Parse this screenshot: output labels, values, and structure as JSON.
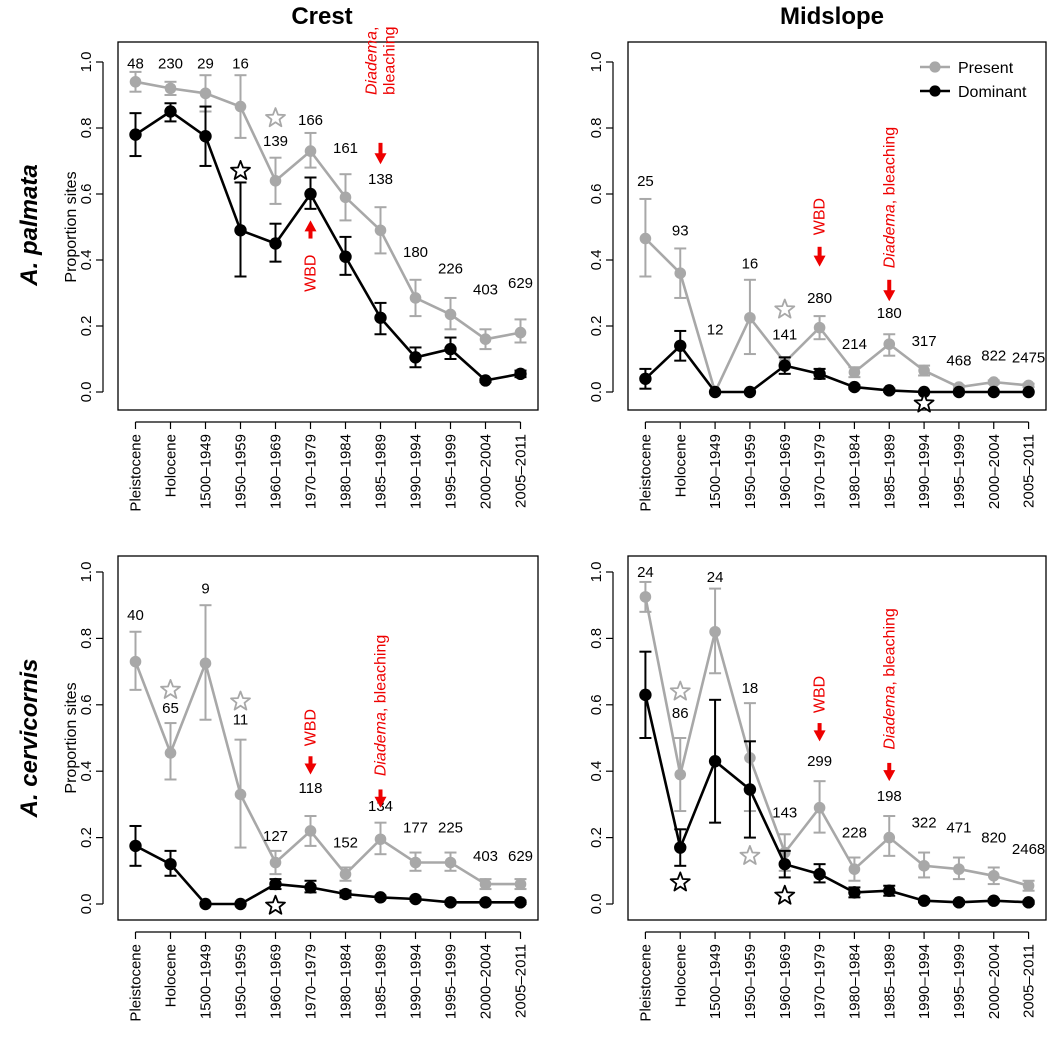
{
  "figure": {
    "column_titles": [
      "Crest",
      "Midslope"
    ],
    "row_titles": [
      "A. palmata",
      "A. cervicornis"
    ],
    "ylabel": "Proportion sites",
    "colors": {
      "present": "#a8a8a8",
      "dominant": "#000000",
      "event": "#ee0000"
    },
    "legend": {
      "present": "Present",
      "dominant": "Dominant",
      "position": "top-right of upper Midslope panel"
    }
  },
  "chart_data": [
    {
      "type": "line",
      "panel": "A. palmata / Crest",
      "categories": [
        "Pleistocene",
        "Holocene",
        "1500–1949",
        "1950–1959",
        "1960–1969",
        "1970–1979",
        "1980–1984",
        "1985–1989",
        "1990–1994",
        "1995–1999",
        "2000–2004",
        "2005–2011"
      ],
      "ylim": [
        0,
        1
      ],
      "yticks": [
        "0.0",
        "0.2",
        "0.4",
        "0.6",
        "0.8",
        "1.0"
      ],
      "grid": false,
      "series": [
        {
          "name": "Present",
          "values": [
            0.94,
            0.92,
            0.905,
            0.865,
            0.64,
            0.73,
            0.59,
            0.49,
            0.285,
            0.235,
            0.16,
            0.18
          ],
          "err_low": [
            0.91,
            0.9,
            0.85,
            0.77,
            0.57,
            0.68,
            0.52,
            0.42,
            0.23,
            0.19,
            0.13,
            0.15
          ],
          "err_high": [
            0.97,
            0.94,
            0.96,
            0.96,
            0.71,
            0.785,
            0.66,
            0.56,
            0.34,
            0.285,
            0.19,
            0.22
          ]
        },
        {
          "name": "Dominant",
          "values": [
            0.78,
            0.85,
            0.775,
            0.49,
            0.45,
            0.6,
            0.41,
            0.225,
            0.105,
            0.13,
            0.035,
            0.055
          ],
          "err_low": [
            0.715,
            0.82,
            0.685,
            0.35,
            0.395,
            0.555,
            0.355,
            0.175,
            0.075,
            0.1,
            0.03,
            0.045
          ],
          "err_high": [
            0.845,
            0.875,
            0.865,
            0.635,
            0.51,
            0.65,
            0.47,
            0.27,
            0.135,
            0.165,
            0.04,
            0.065
          ]
        }
      ],
      "sample_sizes": [
        "48",
        "230",
        "29",
        "16",
        "139",
        "166",
        "161",
        "138",
        "180",
        "226",
        "403",
        "629"
      ],
      "n_label_y": [
        0.995,
        0.995,
        0.995,
        0.995,
        0.76,
        0.825,
        0.74,
        0.645,
        0.425,
        0.375,
        0.31,
        0.33
      ],
      "stars": [
        {
          "category": "1950–1959",
          "y": 0.67,
          "series": "Dominant"
        },
        {
          "category": "1960–1969",
          "y": 0.83,
          "series": "Present"
        }
      ],
      "events": [
        {
          "label": "WBD",
          "category": "1970–1979",
          "direction": "up",
          "arrow_y": [
            0.465,
            0.52
          ],
          "text_y": 0.36
        },
        {
          "label_italic": "Diadema",
          "label_rest": ",\nbleaching",
          "category": "1985–1989",
          "direction": "down",
          "arrow_y": [
            0.755,
            0.69
          ],
          "text_y": 0.9
        }
      ]
    },
    {
      "type": "line",
      "panel": "A. palmata / Midslope",
      "categories": [
        "Pleistocene",
        "Holocene",
        "1500–1949",
        "1950–1959",
        "1960–1969",
        "1970–1979",
        "1980–1984",
        "1985–1989",
        "1990–1994",
        "1995–1999",
        "2000–2004",
        "2005–2011"
      ],
      "ylim": [
        0,
        1
      ],
      "yticks": [
        "0.0",
        "0.2",
        "0.4",
        "0.6",
        "0.8",
        "1.0"
      ],
      "grid": false,
      "series": [
        {
          "name": "Present",
          "values": [
            0.465,
            0.36,
            0.0,
            0.225,
            0.09,
            0.195,
            0.06,
            0.145,
            0.065,
            0.015,
            0.03,
            0.02
          ],
          "err_low": [
            0.35,
            0.285,
            0.0,
            0.115,
            0.075,
            0.16,
            0.045,
            0.11,
            0.05,
            0.01,
            0.025,
            0.015
          ],
          "err_high": [
            0.585,
            0.435,
            0.0,
            0.34,
            0.105,
            0.23,
            0.075,
            0.175,
            0.08,
            0.02,
            0.035,
            0.025
          ]
        },
        {
          "name": "Dominant",
          "values": [
            0.04,
            0.14,
            0.0,
            0.0,
            0.08,
            0.055,
            0.015,
            0.005,
            0.0,
            0.0,
            0.0,
            0.0
          ],
          "err_low": [
            0.01,
            0.095,
            0.0,
            0.0,
            0.055,
            0.04,
            0.01,
            0.0,
            0.0,
            0.0,
            0.0,
            0.0
          ],
          "err_high": [
            0.07,
            0.185,
            0.0,
            0.0,
            0.105,
            0.07,
            0.02,
            0.01,
            0.0,
            0.0,
            0.0,
            0.0
          ]
        }
      ],
      "sample_sizes": [
        "25",
        "93",
        "12",
        "16",
        "141",
        "280",
        "214",
        "180",
        "317",
        "468",
        "822",
        "2475"
      ],
      "n_label_y": [
        0.64,
        0.49,
        0.19,
        0.39,
        0.175,
        0.285,
        0.145,
        0.24,
        0.155,
        0.095,
        0.11,
        0.105
      ],
      "stars": [
        {
          "category": "1960–1969",
          "y": 0.25,
          "series": "Present"
        },
        {
          "category": "1990–1994",
          "y": -0.035,
          "series": "Dominant"
        }
      ],
      "events": [
        {
          "label": "WBD",
          "category": "1970–1979",
          "direction": "down",
          "arrow_y": [
            0.44,
            0.38
          ],
          "text_y": 0.475
        },
        {
          "label_italic": "Diadema",
          "label_rest": ", bleaching",
          "category": "1985–1989",
          "direction": "down",
          "arrow_y": [
            0.34,
            0.275
          ],
          "text_y": 0.375
        }
      ]
    },
    {
      "type": "line",
      "panel": "A. cervicornis / Crest",
      "categories": [
        "Pleistocene",
        "Holocene",
        "1500–1949",
        "1950–1959",
        "1960–1969",
        "1970–1979",
        "1980–1984",
        "1985–1989",
        "1990–1994",
        "1995–1999",
        "2000–2004",
        "2005–2011"
      ],
      "ylim": [
        0,
        1
      ],
      "yticks": [
        "0.0",
        "0.2",
        "0.4",
        "0.6",
        "0.8",
        "1.0"
      ],
      "grid": false,
      "series": [
        {
          "name": "Present",
          "values": [
            0.73,
            0.455,
            0.725,
            0.33,
            0.125,
            0.22,
            0.09,
            0.195,
            0.125,
            0.125,
            0.06,
            0.06
          ],
          "err_low": [
            0.645,
            0.375,
            0.555,
            0.17,
            0.09,
            0.175,
            0.07,
            0.15,
            0.1,
            0.1,
            0.045,
            0.045
          ],
          "err_high": [
            0.82,
            0.545,
            0.9,
            0.495,
            0.16,
            0.265,
            0.11,
            0.245,
            0.155,
            0.155,
            0.075,
            0.075
          ]
        },
        {
          "name": "Dominant",
          "values": [
            0.175,
            0.12,
            0.0,
            0.0,
            0.06,
            0.05,
            0.03,
            0.02,
            0.015,
            0.005,
            0.005,
            0.005
          ],
          "err_low": [
            0.115,
            0.085,
            0.0,
            0.0,
            0.045,
            0.035,
            0.02,
            0.015,
            0.01,
            0.0,
            0.0,
            0.0
          ],
          "err_high": [
            0.235,
            0.16,
            0.0,
            0.0,
            0.075,
            0.07,
            0.04,
            0.025,
            0.02,
            0.01,
            0.01,
            0.01
          ]
        }
      ],
      "sample_sizes": [
        "40",
        "65",
        "9",
        "11",
        "127",
        "118",
        "152",
        "134",
        "177",
        "225",
        "403",
        "629"
      ],
      "n_label_y": [
        0.87,
        0.59,
        0.95,
        0.555,
        0.205,
        0.35,
        0.185,
        0.295,
        0.23,
        0.23,
        0.145,
        0.145
      ],
      "stars": [
        {
          "category": "Holocene",
          "y": 0.645,
          "series": "Present"
        },
        {
          "category": "1950–1959",
          "y": 0.61,
          "series": "Present"
        },
        {
          "category": "1960–1969",
          "y": -0.005,
          "series": "Dominant"
        }
      ],
      "events": [
        {
          "label": "WBD",
          "category": "1970–1979",
          "direction": "down",
          "arrow_y": [
            0.445,
            0.39
          ],
          "text_y": 0.475
        },
        {
          "label_italic": "Diadema",
          "label_rest": ", bleaching",
          "category": "1985–1989",
          "direction": "down",
          "arrow_y": [
            0.345,
            0.29
          ],
          "text_y": 0.385
        }
      ]
    },
    {
      "type": "line",
      "panel": "A. cervicornis / Midslope",
      "categories": [
        "Pleistocene",
        "Holocene",
        "1500–1949",
        "1950–1959",
        "1960–1969",
        "1970–1979",
        "1980–1984",
        "1985–1989",
        "1990–1994",
        "1995–1999",
        "2000–2004",
        "2005–2011"
      ],
      "ylim": [
        0,
        1
      ],
      "yticks": [
        "0.0",
        "0.2",
        "0.4",
        "0.6",
        "0.8",
        "1.0"
      ],
      "grid": false,
      "series": [
        {
          "name": "Present",
          "values": [
            0.925,
            0.39,
            0.82,
            0.44,
            0.155,
            0.29,
            0.105,
            0.2,
            0.115,
            0.105,
            0.085,
            0.055
          ],
          "err_low": [
            0.88,
            0.28,
            0.695,
            0.28,
            0.1,
            0.215,
            0.07,
            0.145,
            0.08,
            0.075,
            0.06,
            0.04
          ],
          "err_high": [
            0.97,
            0.5,
            0.95,
            0.605,
            0.21,
            0.37,
            0.14,
            0.265,
            0.155,
            0.14,
            0.11,
            0.07
          ]
        },
        {
          "name": "Dominant",
          "values": [
            0.63,
            0.17,
            0.43,
            0.345,
            0.12,
            0.09,
            0.035,
            0.04,
            0.01,
            0.005,
            0.01,
            0.005
          ],
          "err_low": [
            0.5,
            0.115,
            0.245,
            0.2,
            0.08,
            0.065,
            0.02,
            0.025,
            0.005,
            0.0,
            0.005,
            0.0
          ],
          "err_high": [
            0.76,
            0.225,
            0.615,
            0.49,
            0.16,
            0.12,
            0.05,
            0.055,
            0.015,
            0.01,
            0.015,
            0.01
          ]
        }
      ],
      "sample_sizes": [
        "24",
        "86",
        "24",
        "18",
        "143",
        "299",
        "228",
        "198",
        "322",
        "471",
        "820",
        "2468"
      ],
      "n_label_y": [
        1.0,
        0.575,
        0.985,
        0.65,
        0.275,
        0.43,
        0.215,
        0.325,
        0.245,
        0.23,
        0.2,
        0.165
      ],
      "stars": [
        {
          "category": "Holocene",
          "y": 0.64,
          "series": "Present"
        },
        {
          "category": "Holocene",
          "y": 0.065,
          "series": "Dominant"
        },
        {
          "category": "1950–1959",
          "y": 0.145,
          "series": "Present"
        },
        {
          "category": "1960–1969",
          "y": 0.025,
          "series": "Dominant"
        }
      ],
      "events": [
        {
          "label": "WBD",
          "category": "1970–1979",
          "direction": "down",
          "arrow_y": [
            0.545,
            0.49
          ],
          "text_y": 0.575
        },
        {
          "label_italic": "Diadema",
          "label_rest": ", bleaching",
          "category": "1985–1989",
          "direction": "down",
          "arrow_y": [
            0.425,
            0.37
          ],
          "text_y": 0.465
        }
      ]
    }
  ]
}
